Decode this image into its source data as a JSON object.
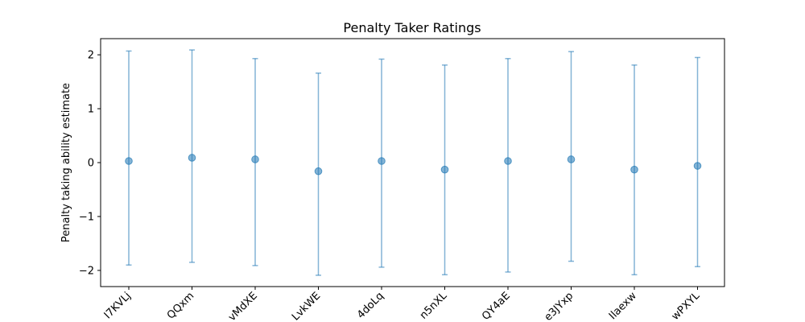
{
  "chart_data": {
    "type": "scatter",
    "title": "Penalty Taker Ratings",
    "xlabel": "",
    "ylabel": "Penalty taking ability estimate",
    "categories": [
      "I7KVLj",
      "QQxm",
      "vMdXE",
      "LvkWE",
      "4doLq",
      "n5nXL",
      "QY4aE",
      "e3JYxp",
      "Ilaexw",
      "wPXYL"
    ],
    "values": [
      0.03,
      0.09,
      0.06,
      -0.16,
      0.03,
      -0.13,
      0.03,
      0.06,
      -0.13,
      -0.06
    ],
    "error_low": [
      -1.9,
      -1.85,
      -1.91,
      -2.09,
      -1.94,
      -2.08,
      -2.03,
      -1.83,
      -2.08,
      -1.93
    ],
    "error_high": [
      2.07,
      2.09,
      1.93,
      1.66,
      1.92,
      1.81,
      1.93,
      2.06,
      1.81,
      1.95
    ],
    "ylim": [
      -2.3,
      2.3
    ],
    "yticks": [
      -2,
      -1,
      0,
      1,
      2
    ],
    "ytick_labels": [
      "−2",
      "−1",
      "0",
      "1",
      "2"
    ],
    "grid": false,
    "colors": {
      "marker": "#1f77b4",
      "errorbar": "#1f77b4",
      "axes": "#000000"
    }
  }
}
